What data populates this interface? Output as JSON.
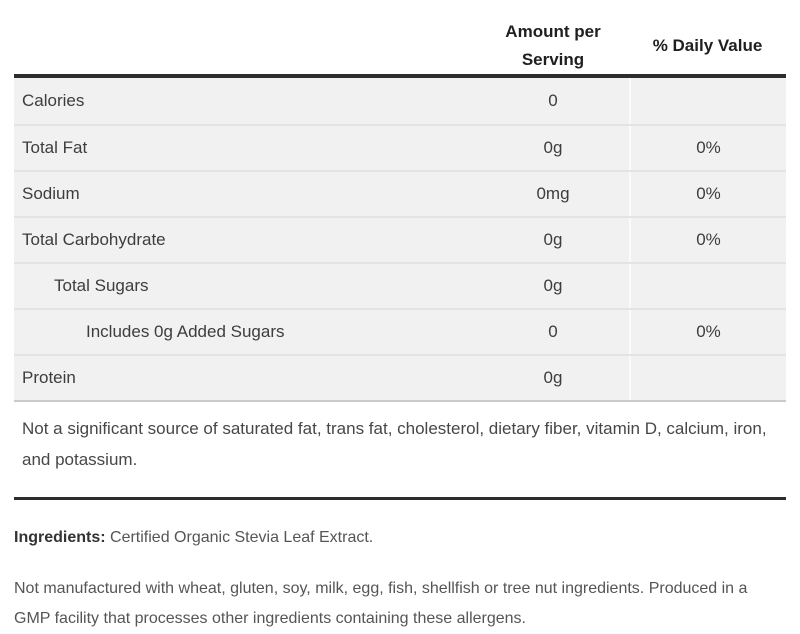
{
  "table": {
    "header": {
      "amount_label": "Amount per Serving",
      "daily_label": "% Daily Value"
    },
    "rows": [
      {
        "label": "Calories",
        "amount": "0",
        "daily": "",
        "indent": 0
      },
      {
        "label": "Total Fat",
        "amount": "0g",
        "daily": "0%",
        "indent": 0
      },
      {
        "label": "Sodium",
        "amount": "0mg",
        "daily": "0%",
        "indent": 0
      },
      {
        "label": "Total Carbohydrate",
        "amount": "0g",
        "daily": "0%",
        "indent": 0
      },
      {
        "label": "Total Sugars",
        "amount": "0g",
        "daily": "",
        "indent": 1
      },
      {
        "label": "Includes 0g Added Sugars",
        "amount": "0",
        "daily": "0%",
        "indent": 2
      },
      {
        "label": "Protein",
        "amount": "0g",
        "daily": "",
        "indent": 0
      }
    ],
    "footnote": "Not a significant source of saturated fat, trans fat, cholesterol, dietary fiber, vitamin D, calcium, iron, and potassium."
  },
  "ingredients": {
    "label": "Ingredients:",
    "text": "Certified Organic Stevia Leaf Extract."
  },
  "allergen_statement": "Not manufactured with wheat, gluten, soy, milk, egg, fish, shellfish or tree nut ingredients. Produced in a GMP facility that processes other ingredients containing these allergens.",
  "colors": {
    "row_background": "#f1f1f1",
    "row_separator": "#e3e3e3",
    "column_divider": "#fafafa",
    "table_top_border": "#2d2d2d",
    "table_bottom_border": "#cbcbcb",
    "thick_rule": "#2d2d2d",
    "header_text": "#1f1f1f",
    "body_text": "#3d3d3d"
  }
}
